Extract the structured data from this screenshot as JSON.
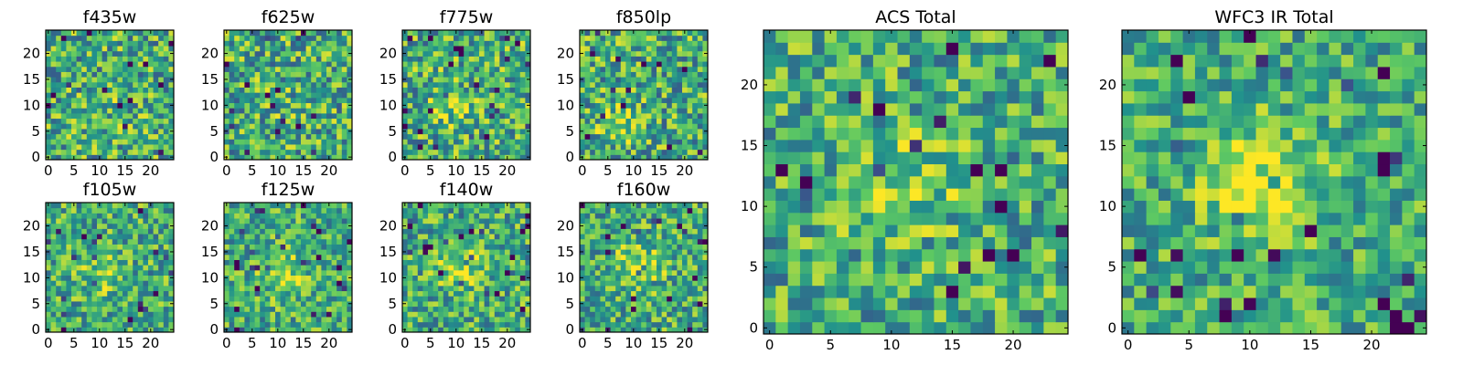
{
  "chart_data": [
    {
      "type": "heatmap",
      "title": "f435w",
      "xticks": [
        0,
        5,
        10,
        15,
        20
      ],
      "yticks": [
        0,
        5,
        10,
        15,
        20
      ],
      "xlim": [
        0,
        24
      ],
      "ylim": [
        0,
        24
      ],
      "grid_size": 25,
      "seed": 3,
      "blob": {
        "cx": 11,
        "cy": 10,
        "strength": 0.05
      },
      "contrast": 0.34
    },
    {
      "type": "heatmap",
      "title": "f625w",
      "xticks": [
        0,
        5,
        10,
        15,
        20
      ],
      "yticks": [
        0,
        5,
        10,
        15,
        20
      ],
      "xlim": [
        0,
        24
      ],
      "ylim": [
        0,
        24
      ],
      "grid_size": 25,
      "seed": 7,
      "blob": {
        "cx": 11,
        "cy": 11,
        "strength": 0.06
      },
      "contrast": 0.34
    },
    {
      "type": "heatmap",
      "title": "f775w",
      "xticks": [
        0,
        5,
        10,
        15,
        20
      ],
      "yticks": [
        0,
        5,
        10,
        15,
        20
      ],
      "xlim": [
        0,
        24
      ],
      "ylim": [
        0,
        24
      ],
      "grid_size": 25,
      "seed": 11,
      "blob": {
        "cx": 9,
        "cy": 10,
        "strength": 0.18
      },
      "contrast": 0.34
    },
    {
      "type": "heatmap",
      "title": "f850lp",
      "xticks": [
        0,
        5,
        10,
        15,
        20
      ],
      "yticks": [
        0,
        5,
        10,
        15,
        20
      ],
      "xlim": [
        0,
        24
      ],
      "ylim": [
        0,
        24
      ],
      "grid_size": 25,
      "seed": 13,
      "blob": {
        "cx": 7,
        "cy": 7,
        "strength": 0.18
      },
      "contrast": 0.34
    },
    {
      "type": "heatmap",
      "title": "f105w",
      "xticks": [
        0,
        5,
        10,
        15,
        20
      ],
      "yticks": [
        0,
        5,
        10,
        15,
        20
      ],
      "xlim": [
        0,
        24
      ],
      "ylim": [
        0,
        24
      ],
      "grid_size": 25,
      "seed": 17,
      "blob": {
        "cx": 11,
        "cy": 11,
        "strength": 0.22
      },
      "contrast": 0.3
    },
    {
      "type": "heatmap",
      "title": "f125w",
      "xticks": [
        0,
        5,
        10,
        15,
        20
      ],
      "yticks": [
        0,
        5,
        10,
        15,
        20
      ],
      "xlim": [
        0,
        24
      ],
      "ylim": [
        0,
        24
      ],
      "grid_size": 25,
      "seed": 19,
      "blob": {
        "cx": 11,
        "cy": 11,
        "strength": 0.26
      },
      "contrast": 0.28
    },
    {
      "type": "heatmap",
      "title": "f140w",
      "xticks": [
        0,
        5,
        10,
        15,
        20
      ],
      "yticks": [
        0,
        5,
        10,
        15,
        20
      ],
      "xlim": [
        0,
        24
      ],
      "ylim": [
        0,
        24
      ],
      "grid_size": 25,
      "seed": 23,
      "blob": {
        "cx": 11,
        "cy": 12,
        "strength": 0.26
      },
      "contrast": 0.3
    },
    {
      "type": "heatmap",
      "title": "f160w",
      "xticks": [
        0,
        5,
        10,
        15,
        20
      ],
      "yticks": [
        0,
        5,
        10,
        15,
        20
      ],
      "xlim": [
        0,
        24
      ],
      "ylim": [
        0,
        24
      ],
      "grid_size": 25,
      "seed": 29,
      "blob": {
        "cx": 11,
        "cy": 12,
        "strength": 0.3
      },
      "contrast": 0.3
    },
    {
      "type": "heatmap",
      "title": "ACS Total",
      "xticks": [
        0,
        5,
        10,
        15,
        20
      ],
      "yticks": [
        0,
        5,
        10,
        15,
        20
      ],
      "xlim": [
        0,
        24
      ],
      "ylim": [
        0,
        24
      ],
      "grid_size": 25,
      "seed": 31,
      "blob": {
        "cx": 11,
        "cy": 12,
        "strength": 0.22
      },
      "contrast": 0.3
    },
    {
      "type": "heatmap",
      "title": "WFC3 IR Total",
      "xticks": [
        0,
        5,
        10,
        15,
        20
      ],
      "yticks": [
        0,
        5,
        10,
        15,
        20
      ],
      "xlim": [
        0,
        24
      ],
      "ylim": [
        0,
        24
      ],
      "grid_size": 25,
      "seed": 37,
      "blob": {
        "cx": 11,
        "cy": 12,
        "strength": 0.42
      },
      "contrast": 0.26
    }
  ],
  "colormap": [
    "#440154",
    "#3b528b",
    "#21918c",
    "#5ec962",
    "#fde725"
  ]
}
